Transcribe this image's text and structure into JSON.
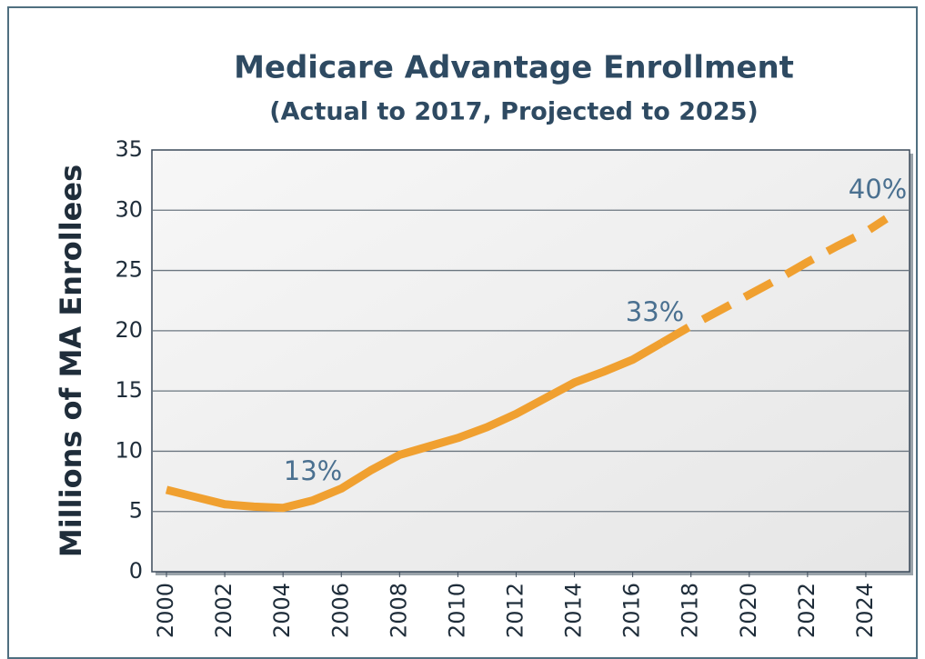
{
  "chart_data": {
    "type": "line",
    "title": "Medicare Advantage Enrollment",
    "subtitle": "(Actual to 2017, Projected to 2025)",
    "y_label": "Millions of MA Enrollees",
    "xlim": [
      1999.5,
      2025.5
    ],
    "xticks": [
      2000,
      2002,
      2004,
      2006,
      2008,
      2010,
      2012,
      2014,
      2016,
      2018,
      2020,
      2022,
      2024
    ],
    "ylim": [
      0,
      35
    ],
    "yticks": [
      0,
      5,
      10,
      15,
      20,
      25,
      30,
      35
    ],
    "grid": true,
    "series": [
      {
        "color": "#f0a030",
        "dash": false,
        "x": [
          2000,
          2001,
          2002,
          2003,
          2004,
          2005,
          2006,
          2007,
          2008,
          2009,
          2010,
          2011,
          2012,
          2013,
          2014,
          2015,
          2016,
          2017
        ],
        "values": [
          6.8,
          6.2,
          5.6,
          5.4,
          5.3,
          5.9,
          6.9,
          8.4,
          9.7,
          10.4,
          11.1,
          12.0,
          13.1,
          14.4,
          15.7,
          16.6,
          17.6,
          19.0
        ]
      },
      {
        "color": "#f0a030",
        "dash": true,
        "x": [
          2017,
          2018,
          2019,
          2020,
          2021,
          2022,
          2023,
          2024,
          2024.7
        ],
        "values": [
          19.0,
          20.4,
          21.7,
          23.0,
          24.3,
          25.7,
          27.0,
          28.2,
          29.3
        ]
      }
    ],
    "annotations": [
      "13%",
      "33%",
      "40%"
    ]
  }
}
